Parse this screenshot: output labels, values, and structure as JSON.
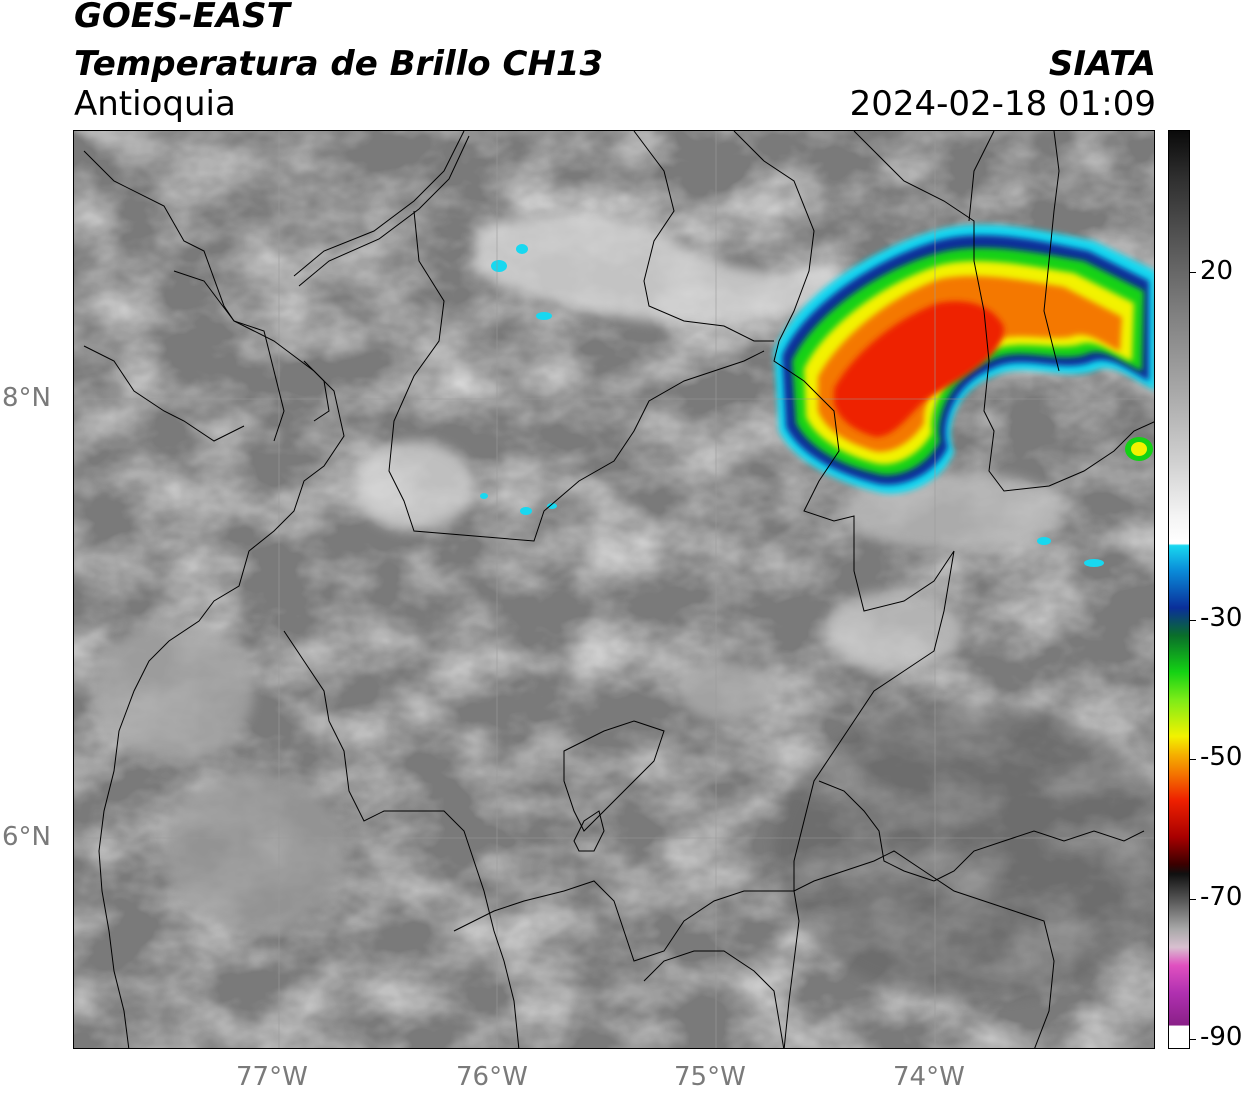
{
  "header": {
    "satellite": "GOES-EAST",
    "product": "Temperatura de Brillo CH13",
    "region": "Antioquia",
    "organization": "SIATA",
    "datetime": "2024-02-18 01:09"
  },
  "axes": {
    "latitude_labels": [
      "8°N",
      "6°N"
    ],
    "longitude_labels": [
      "77°W",
      "76°W",
      "75°W",
      "74°W"
    ]
  },
  "colorbar": {
    "tick_labels": [
      "20",
      "-30",
      "-50",
      "-70",
      "-90"
    ],
    "unit_colors": {
      "warm_gray": "#7a7a7a",
      "cold_cyan": "#18d8f0",
      "cold_blue": "#0a2f9a",
      "cold_green": "#14d214",
      "cold_yellow": "#f2f200",
      "cold_orange": "#f47800",
      "cold_red": "#ee2000",
      "coldest_magenta": "#e050c0"
    }
  }
}
